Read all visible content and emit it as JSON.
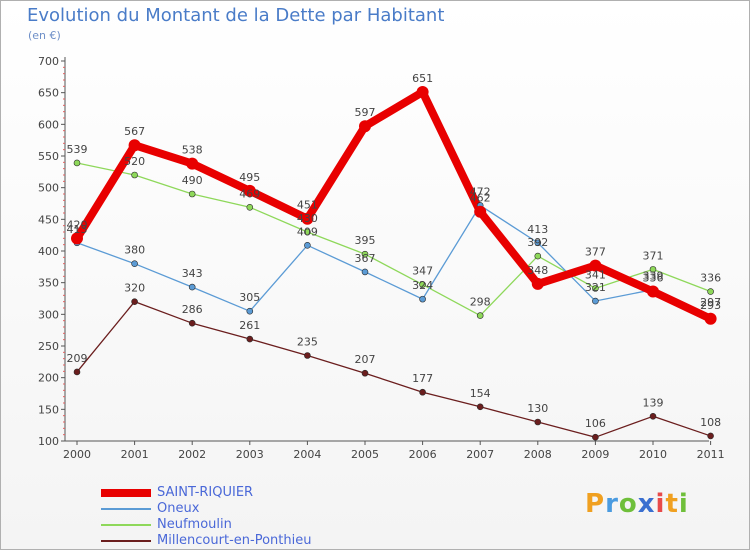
{
  "header": {
    "title": "Evolution du Montant de la Dette par Habitant",
    "unit": "(en €)"
  },
  "logo": {
    "text": "Proxiti",
    "letters": [
      "P",
      "r",
      "o",
      "x",
      "i",
      "t",
      "i"
    ],
    "colors": [
      "#f0a020",
      "#4a9be0",
      "#6fbf3a",
      "#3a6fd0",
      "#e84a4a",
      "#f0a020",
      "#6fbf3a"
    ]
  },
  "chart_data": {
    "type": "line",
    "title": "Evolution du Montant de la Dette par Habitant",
    "subtitle": "(en €)",
    "x": [
      "2000",
      "2001",
      "2002",
      "2003",
      "2004",
      "2005",
      "2006",
      "2007",
      "2008",
      "2009",
      "2010",
      "2011"
    ],
    "ylim": [
      100,
      700
    ],
    "yticks": [
      "100",
      "150",
      "200",
      "250",
      "300",
      "350",
      "400",
      "450",
      "500",
      "550",
      "600",
      "650",
      "700"
    ],
    "grid": false,
    "legend": "bottom-left",
    "series": [
      {
        "name": "SAINT-RIQUIER",
        "color": "#e80000",
        "values": [
          420,
          567,
          538,
          495,
          451,
          597,
          651,
          462,
          348,
          377,
          336,
          293
        ]
      },
      {
        "name": "Oneux",
        "color": "#5b9bd5",
        "values": [
          413,
          380,
          343,
          305,
          409,
          367,
          324,
          472,
          413,
          321,
          339,
          297
        ]
      },
      {
        "name": "Neufmoulin",
        "color": "#8ed85a",
        "values": [
          539,
          520,
          490,
          469,
          430,
          395,
          347,
          298,
          392,
          341,
          371,
          336
        ]
      },
      {
        "name": "Millencourt-en-Ponthieu",
        "color": "#6b1e1e",
        "values": [
          209,
          320,
          286,
          261,
          235,
          207,
          177,
          154,
          130,
          106,
          139,
          108
        ]
      }
    ]
  }
}
